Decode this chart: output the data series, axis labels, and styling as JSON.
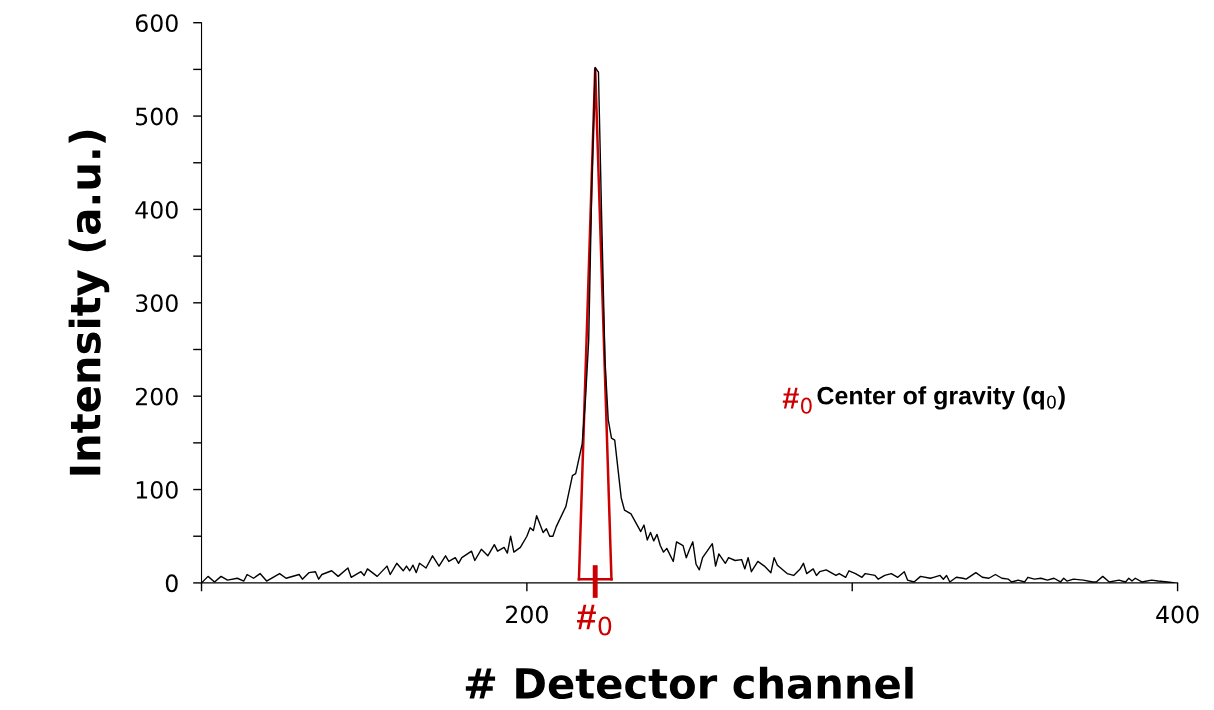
{
  "chart_data": {
    "type": "line",
    "xlabel": "# Detector channel",
    "ylabel": "Intensity (a.u.)",
    "xlim": [
      100,
      400
    ],
    "ylim": [
      0,
      600
    ],
    "xticks": [
      {
        "value": 100,
        "label": null
      },
      200,
      {
        "value": 300,
        "label": null
      },
      400
    ],
    "yticks": [
      0,
      {
        "value": 50,
        "label": null
      },
      100,
      {
        "value": 150,
        "label": null
      },
      200,
      {
        "value": 250,
        "label": null
      },
      300,
      {
        "value": 350,
        "label": null
      },
      400,
      {
        "value": 450,
        "label": null
      },
      500,
      {
        "value": 550,
        "label": null
      },
      600
    ],
    "grid": false,
    "legend": false,
    "marker": "none",
    "line_style": "solid",
    "series": [
      {
        "color": "#000000",
        "x": [
          100,
          102,
          104,
          106,
          108,
          111,
          113,
          114,
          116,
          118,
          120,
          122,
          124,
          126,
          130,
          131,
          133,
          135,
          136,
          137,
          140,
          142,
          145,
          146,
          149,
          150,
          151,
          154,
          157,
          158,
          160,
          162,
          163,
          164,
          165,
          166,
          167,
          169,
          171,
          173,
          175,
          176,
          178,
          179,
          180,
          183,
          184,
          186,
          188,
          190,
          191,
          193,
          194,
          195,
          196,
          198,
          200,
          201,
          202,
          203,
          205,
          206,
          207,
          208,
          209,
          212,
          214,
          215,
          217,
          218,
          219,
          220,
          221,
          222,
          223,
          224,
          225,
          226,
          227,
          229,
          230,
          232,
          235,
          236,
          237,
          238,
          239,
          240,
          241,
          242,
          243,
          245,
          246,
          248,
          249,
          250,
          251,
          252,
          253,
          254,
          256,
          257,
          258,
          259,
          261,
          262,
          264,
          266,
          267,
          268,
          269,
          271,
          273,
          275,
          276,
          277,
          280,
          282,
          284,
          285,
          286,
          288,
          289,
          290,
          292,
          295,
          296,
          298,
          299,
          301,
          303,
          304,
          307,
          308,
          310,
          312,
          314,
          316,
          317,
          319,
          321,
          324,
          325,
          327,
          328,
          329,
          330,
          332,
          334,
          335,
          338,
          340,
          342,
          344,
          346,
          348,
          349,
          351,
          353,
          354,
          356,
          358,
          360,
          362,
          364,
          365,
          366,
          368,
          371,
          374,
          375,
          377,
          379,
          382,
          384,
          385,
          386,
          387,
          389,
          392,
          394,
          397,
          399
        ],
        "values": [
          0,
          7,
          1,
          7,
          3,
          5,
          2,
          9,
          5,
          10,
          2,
          6,
          10,
          5,
          9,
          4,
          11,
          12,
          4,
          9,
          13,
          7,
          16,
          6,
          12,
          8,
          15,
          7,
          18,
          9,
          21,
          13,
          18,
          13,
          19,
          11,
          21,
          16,
          29,
          18,
          29,
          23,
          27,
          21,
          27,
          34,
          24,
          36,
          29,
          41,
          34,
          38,
          32,
          50,
          33,
          38,
          50,
          59,
          56,
          72,
          54,
          58,
          50,
          50,
          60,
          82,
          115,
          117,
          149,
          196,
          260,
          432,
          552,
          547,
          389,
          239,
          175,
          155,
          153,
          91,
          78,
          74,
          55,
          62,
          46,
          54,
          45,
          52,
          40,
          33,
          37,
          23,
          44,
          40,
          27,
          36,
          44,
          20,
          14,
          27,
          37,
          42,
          18,
          31,
          21,
          27,
          24,
          25,
          15,
          27,
          12,
          23,
          18,
          11,
          27,
          19,
          10,
          8,
          15,
          21,
          10,
          15,
          8,
          12,
          14,
          8,
          10,
          6,
          13,
          10,
          6,
          10,
          8,
          4,
          8,
          10,
          6,
          12,
          3,
          1,
          7,
          5,
          6,
          8,
          4,
          8,
          1,
          6,
          5,
          4,
          11,
          6,
          5,
          9,
          5,
          4,
          1,
          3,
          1,
          6,
          4,
          5,
          3,
          5,
          1,
          5,
          2,
          4,
          3,
          1,
          1,
          7,
          1,
          3,
          1,
          5,
          2,
          5,
          1,
          3,
          2,
          1,
          0
        ]
      },
      {
        "color": "#cc0000",
        "x": [
          216,
          221,
          226
        ],
        "values": [
          4,
          551,
          4
        ]
      },
      {
        "color": "#cc0000",
        "x": [
          216,
          226
        ],
        "values": [
          4,
          4
        ]
      }
    ],
    "annotations": [
      "#$_{0}$",
      "#$_{0}$",
      "Center of gravity (q$_{0}$)"
    ]
  }
}
